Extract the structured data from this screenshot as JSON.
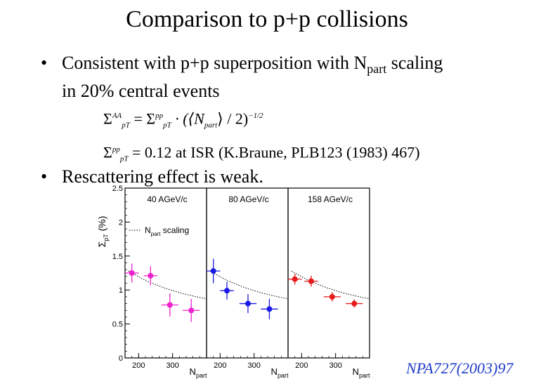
{
  "slide": {
    "title": "Comparison to p+p collisions",
    "bullet1_text": "Consistent with p+p superposition with N",
    "bullet1_sub": "part",
    "bullet1_tail": " scaling",
    "bullet1_line2": "in 20% central events",
    "bullet_symbol": "•",
    "bullet2_text": "Rescattering effect is weak.",
    "reference": "NPA727(2003)97"
  },
  "equations": {
    "eq1_lhs": "Σ",
    "eq1_lhs_sup": "AA",
    "eq1_lhs_sub": "p",
    "eq1_lhs_subsub": "T",
    "eq1_eq": " = Σ",
    "eq1_rhs_sup": "pp",
    "eq1_rhs_sub": "p",
    "eq1_rhs_subsub": "T",
    "eq1_mid": " · (⟨N",
    "eq1_npart": "part",
    "eq1_end": "⟩ / 2)",
    "eq1_exp": "−1/2",
    "eq2_lhs": "Σ",
    "eq2_sup": "pp",
    "eq2_sub": "p",
    "eq2_subsub": "T",
    "eq2_rest": " = 0.12 at ISR (K.Braune, PLB123 (1983) 467)"
  },
  "chart_data": {
    "type": "scatter",
    "ylabel": "Σ",
    "ylabel_sub": "p",
    "ylabel_subsub": "T",
    "ylabel_unit": "(%)",
    "xlabel": "N",
    "xlabel_sub": "part",
    "ylim": [
      0,
      2.5
    ],
    "yticks": [
      0,
      0.5,
      1,
      1.5,
      2,
      2.5
    ],
    "ytick_labels": [
      "0",
      "0.5",
      "1",
      "1.5",
      "2",
      "2.5"
    ],
    "legend_label": "N",
    "legend_label_sub": "part",
    "legend_label_tail": " scaling",
    "legend_placement": "top-left of first panel",
    "panels": [
      {
        "name": "40 AGeV/c",
        "color": "#ee22cc",
        "xticks": [
          200,
          300
        ],
        "xtick_labels": [
          "200",
          "300"
        ],
        "xlim": [
          160,
          400
        ],
        "points": [
          {
            "x": 180,
            "y": 1.25,
            "xerr": 20,
            "yerr": 0.14
          },
          {
            "x": 235,
            "y": 1.21,
            "xerr": 20,
            "yerr": 0.14
          },
          {
            "x": 292,
            "y": 0.78,
            "xerr": 25,
            "yerr": 0.17
          },
          {
            "x": 355,
            "y": 0.7,
            "xerr": 25,
            "yerr": 0.17
          }
        ],
        "scaling_curve": [
          [
            170,
            1.28
          ],
          [
            220,
            1.14
          ],
          [
            270,
            1.04
          ],
          [
            320,
            0.96
          ],
          [
            370,
            0.9
          ],
          [
            400,
            0.87
          ]
        ]
      },
      {
        "name": "80 AGeV/c",
        "color": "#1a1ae6",
        "xticks": [
          200,
          300
        ],
        "xtick_labels": [
          "200",
          "300"
        ],
        "xlim": [
          160,
          400
        ],
        "points": [
          {
            "x": 180,
            "y": 1.28,
            "xerr": 20,
            "yerr": 0.18
          },
          {
            "x": 220,
            "y": 0.99,
            "xerr": 20,
            "yerr": 0.13
          },
          {
            "x": 282,
            "y": 0.8,
            "xerr": 25,
            "yerr": 0.14
          },
          {
            "x": 345,
            "y": 0.72,
            "xerr": 25,
            "yerr": 0.15
          }
        ],
        "scaling_curve": [
          [
            170,
            1.28
          ],
          [
            220,
            1.14
          ],
          [
            270,
            1.04
          ],
          [
            320,
            0.96
          ],
          [
            370,
            0.9
          ],
          [
            400,
            0.87
          ]
        ]
      },
      {
        "name": "158 AGeV/c",
        "color": "#e61a1a",
        "xticks": [
          200,
          300
        ],
        "xtick_labels": [
          "200",
          "300"
        ],
        "xlim": [
          160,
          400
        ],
        "points": [
          {
            "x": 180,
            "y": 1.16,
            "xerr": 20,
            "yerr": 0.08
          },
          {
            "x": 228,
            "y": 1.13,
            "xerr": 20,
            "yerr": 0.08
          },
          {
            "x": 290,
            "y": 0.9,
            "xerr": 25,
            "yerr": 0.07
          },
          {
            "x": 355,
            "y": 0.8,
            "xerr": 25,
            "yerr": 0.06
          }
        ],
        "scaling_curve": [
          [
            170,
            1.28
          ],
          [
            220,
            1.14
          ],
          [
            270,
            1.04
          ],
          [
            320,
            0.96
          ],
          [
            370,
            0.9
          ],
          [
            400,
            0.87
          ]
        ]
      }
    ]
  }
}
